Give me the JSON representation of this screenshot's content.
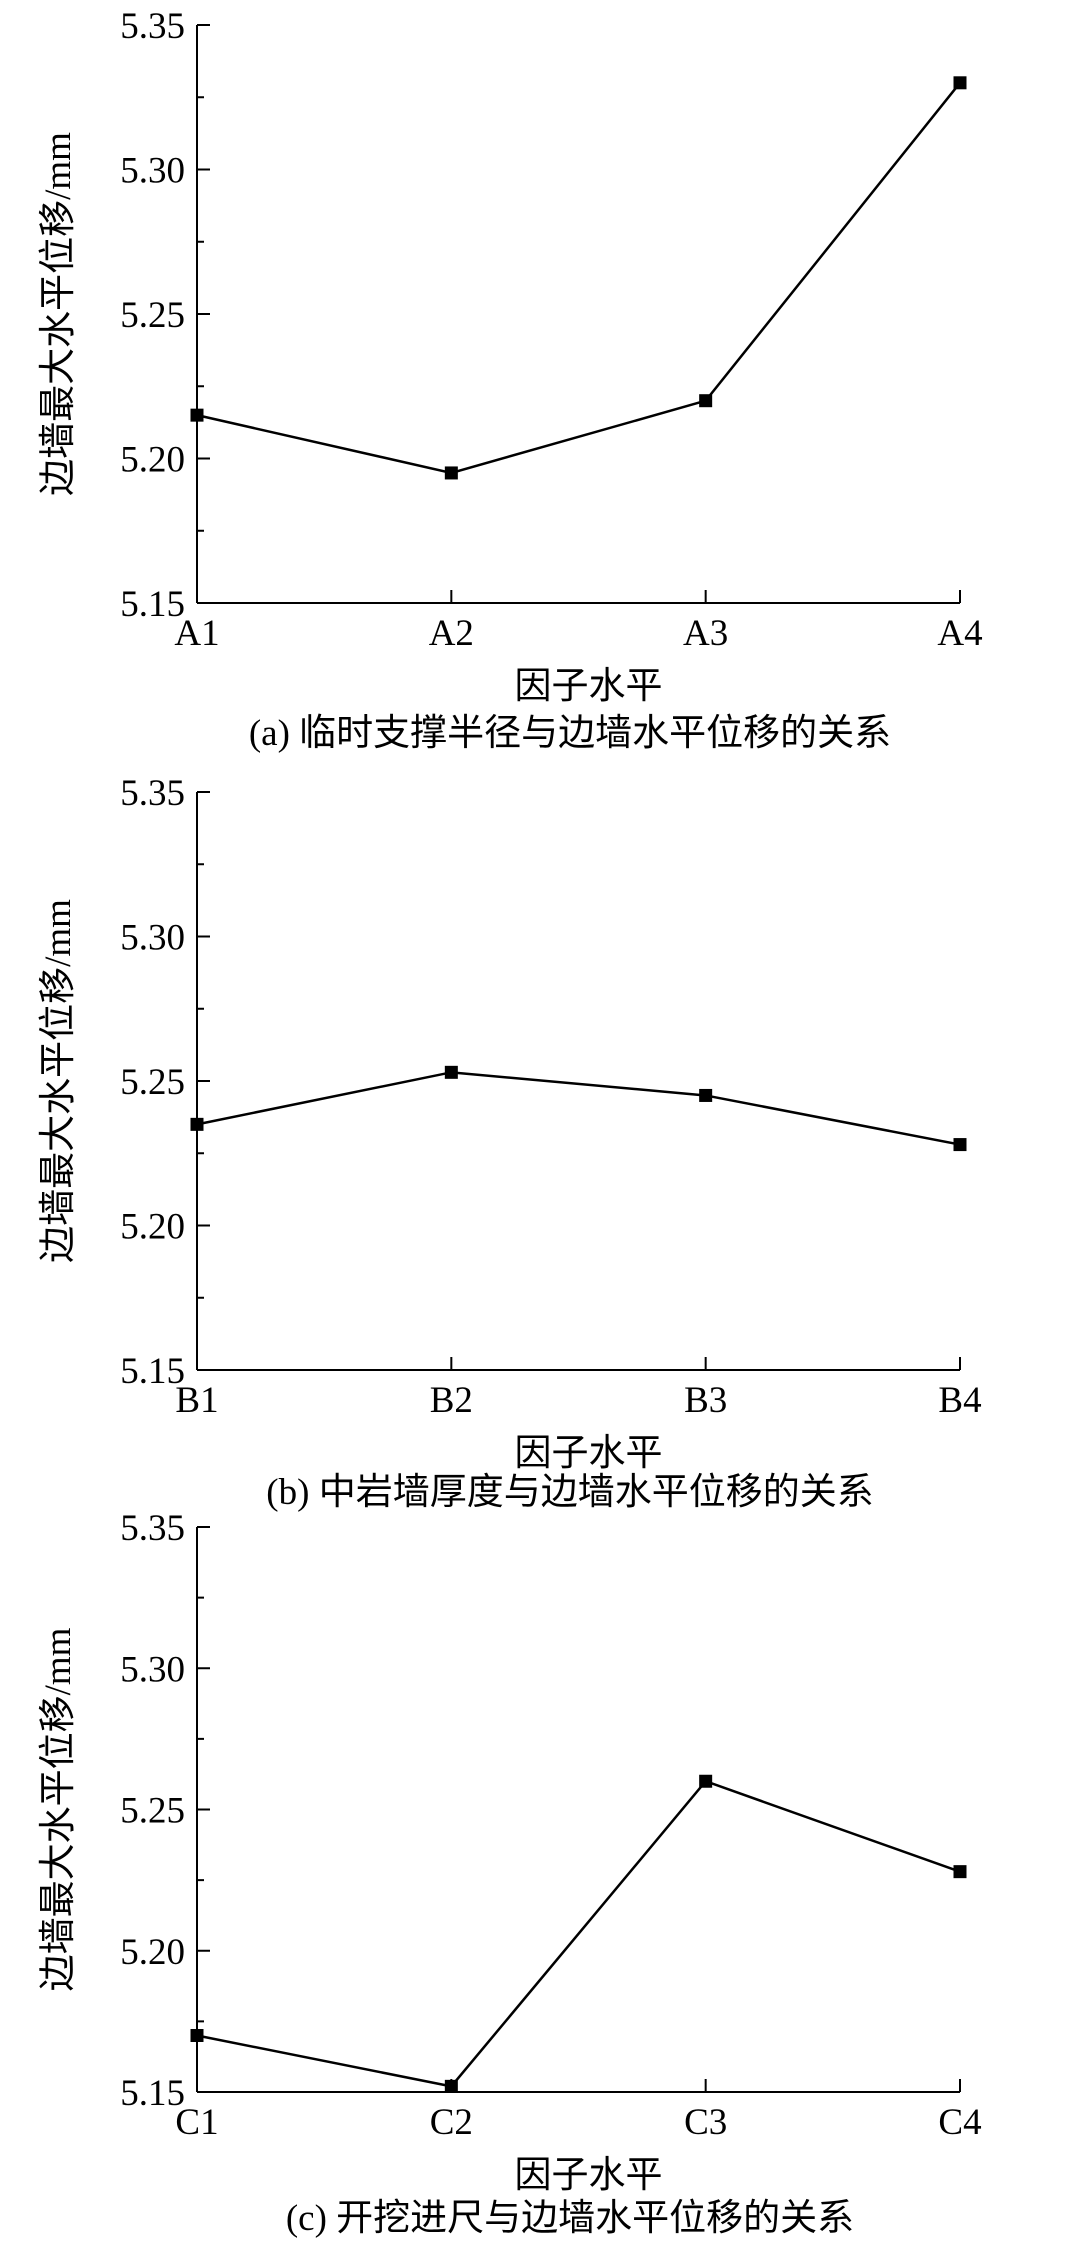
{
  "chart_data": [
    {
      "type": "line",
      "categories": [
        "A1",
        "A2",
        "A3",
        "A4"
      ],
      "values": [
        5.215,
        5.195,
        5.22,
        5.33
      ],
      "xlabel": "因子水平",
      "ylabel": "边墙最大水平位移/mm",
      "ylim": [
        5.15,
        5.35
      ],
      "yticks": [
        "5.15",
        "5.20",
        "5.25",
        "5.30",
        "5.35"
      ],
      "caption": "(a) 临时支撑半径与边墙水平位移的关系",
      "grid": false,
      "marker": "square"
    },
    {
      "type": "line",
      "categories": [
        "B1",
        "B2",
        "B3",
        "B4"
      ],
      "values": [
        5.235,
        5.253,
        5.245,
        5.228
      ],
      "xlabel": "因子水平",
      "ylabel": "边墙最大水平位移/mm",
      "ylim": [
        5.15,
        5.35
      ],
      "yticks": [
        "5.15",
        "5.20",
        "5.25",
        "5.30",
        "5.35"
      ],
      "caption": "(b) 中岩墙厚度与边墙水平位移的关系",
      "grid": false,
      "marker": "square"
    },
    {
      "type": "line",
      "categories": [
        "C1",
        "C2",
        "C3",
        "C4"
      ],
      "values": [
        5.17,
        5.152,
        5.26,
        5.228
      ],
      "xlabel": "因子水平",
      "ylabel": "边墙最大水平位移/mm",
      "ylim": [
        5.15,
        5.35
      ],
      "yticks": [
        "5.15",
        "5.20",
        "5.25",
        "5.30",
        "5.35"
      ],
      "caption": "(c) 开挖进尺与边墙水平位移的关系",
      "grid": false,
      "marker": "square"
    }
  ]
}
